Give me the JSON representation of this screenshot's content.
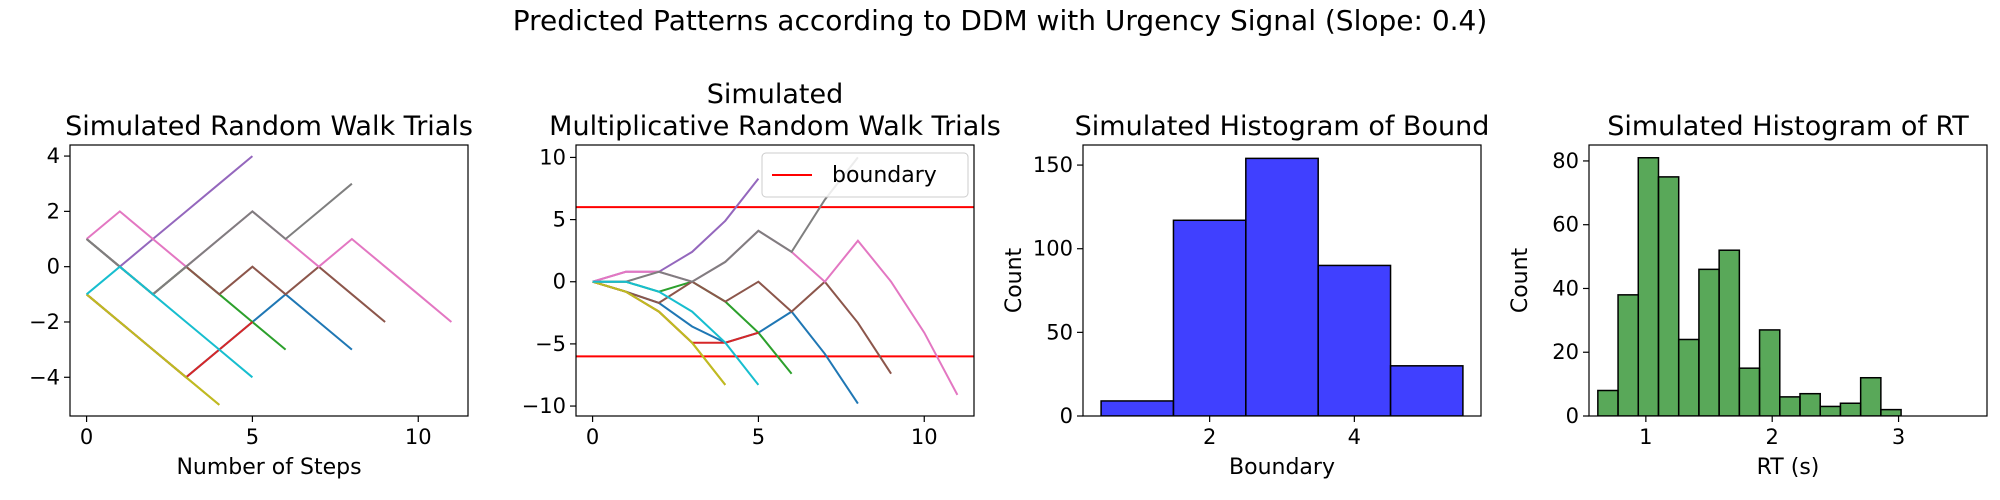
{
  "figure_title": "Predicted Patterns according to DDM with Urgency Signal (Slope: 0.4)",
  "chart_data": [
    {
      "type": "line",
      "title": "Simulated Random Walk Trials",
      "xlabel": "Number of Steps",
      "ylabel": "",
      "xlim": [
        -0.5,
        11.5
      ],
      "ylim": [
        -5.4,
        4.4
      ],
      "xticks": [
        0,
        5,
        10
      ],
      "yticks": [
        -4,
        -2,
        0,
        2,
        4
      ],
      "grid": false,
      "series": [
        {
          "color": "#1f77b4",
          "x": [
            0,
            1,
            2,
            3,
            4,
            5,
            6,
            7,
            8
          ],
          "y": [
            -1,
            -2,
            -3,
            -4,
            -3,
            -2,
            -1,
            -2,
            -3
          ]
        },
        {
          "color": "#ff7f0e",
          "x": [
            0,
            1,
            2,
            3,
            4
          ],
          "y": [
            -1,
            -2,
            -3,
            -4,
            -5
          ]
        },
        {
          "color": "#2ca02c",
          "x": [
            0,
            1,
            2,
            3,
            4,
            5,
            6
          ],
          "y": [
            1,
            0,
            -1,
            0,
            -1,
            -2,
            -3
          ]
        },
        {
          "color": "#d62728",
          "x": [
            0,
            1,
            2,
            3,
            4,
            5
          ],
          "y": [
            -1,
            -2,
            -3,
            -4,
            -3,
            -2
          ]
        },
        {
          "color": "#9467bd",
          "x": [
            0,
            1,
            2,
            3,
            4,
            5
          ],
          "y": [
            1,
            0,
            1,
            2,
            3,
            4
          ]
        },
        {
          "color": "#8c564b",
          "x": [
            0,
            1,
            2,
            3,
            4,
            5,
            6,
            7,
            8,
            9
          ],
          "y": [
            1,
            0,
            -1,
            0,
            -1,
            0,
            -1,
            0,
            -1,
            -2
          ]
        },
        {
          "color": "#e377c2",
          "x": [
            0,
            1,
            2,
            3,
            4,
            5,
            6,
            7,
            8,
            9,
            10,
            11
          ],
          "y": [
            1,
            2,
            1,
            0,
            1,
            2,
            1,
            0,
            1,
            0,
            -1,
            -2
          ]
        },
        {
          "color": "#7f7f7f",
          "x": [
            0,
            1,
            2,
            3,
            4,
            5,
            6,
            7,
            8
          ],
          "y": [
            1,
            0,
            -1,
            0,
            1,
            2,
            1,
            2,
            3
          ]
        },
        {
          "color": "#bcbd22",
          "x": [
            0,
            1,
            2,
            3,
            4
          ],
          "y": [
            -1,
            -2,
            -3,
            -4,
            -5
          ]
        },
        {
          "color": "#17becf",
          "x": [
            0,
            1,
            2,
            3,
            4,
            5
          ],
          "y": [
            -1,
            0,
            -1,
            -2,
            -3,
            -4
          ]
        }
      ]
    },
    {
      "type": "line",
      "title": "Simulated\nMultiplicative Random Walk Trials",
      "xlabel": "",
      "ylabel": "",
      "xlim": [
        -0.5,
        11.5
      ],
      "ylim": [
        -10.8,
        11.0
      ],
      "xticks": [
        0,
        5,
        10
      ],
      "yticks": [
        -10,
        -5,
        0,
        5,
        10
      ],
      "grid": false,
      "legend": {
        "position": "top-right",
        "entries": [
          {
            "label": "boundary",
            "color": "#ff0000"
          }
        ]
      },
      "boundaries": [
        6,
        -6
      ],
      "series": [
        {
          "color": "#1f77b4",
          "x": [
            0,
            1,
            2,
            3,
            4,
            5,
            6,
            7,
            8
          ],
          "y": [
            0,
            -0.8,
            -1.7,
            -3.6,
            -4.9,
            -4.1,
            -2.4,
            -5.8,
            -9.8
          ]
        },
        {
          "color": "#ff7f0e",
          "x": [
            0,
            1,
            2,
            3,
            4
          ],
          "y": [
            0,
            -0.8,
            -2.4,
            -4.9,
            -8.3
          ]
        },
        {
          "color": "#2ca02c",
          "x": [
            0,
            1,
            2,
            3,
            4,
            5,
            6
          ],
          "y": [
            0,
            0,
            -0.8,
            0,
            -1.6,
            -4.1,
            -7.4
          ]
        },
        {
          "color": "#d62728",
          "x": [
            0,
            1,
            2,
            3,
            4,
            5
          ],
          "y": [
            0,
            -0.8,
            -2.4,
            -4.9,
            -4.9,
            -4.1
          ]
        },
        {
          "color": "#9467bd",
          "x": [
            0,
            1,
            2,
            3,
            4,
            5
          ],
          "y": [
            0,
            0.8,
            0.8,
            2.4,
            4.9,
            8.3
          ]
        },
        {
          "color": "#8c564b",
          "x": [
            0,
            1,
            2,
            3,
            4,
            5,
            6,
            7,
            8,
            9
          ],
          "y": [
            0,
            -0.8,
            -1.7,
            0,
            -1.6,
            0,
            -2.4,
            0,
            -3.3,
            -7.4
          ]
        },
        {
          "color": "#e377c2",
          "x": [
            0,
            1,
            2,
            3,
            4,
            5,
            6,
            7,
            8,
            9,
            10,
            11
          ],
          "y": [
            0,
            0.8,
            0.8,
            0,
            1.6,
            4.1,
            2.4,
            0,
            3.3,
            0,
            -4.1,
            -9.1
          ]
        },
        {
          "color": "#7f7f7f",
          "x": [
            0,
            1,
            2,
            3,
            4,
            5,
            6,
            7,
            8
          ],
          "y": [
            0,
            0,
            0.8,
            0,
            1.6,
            4.1,
            2.4,
            6.6,
            10
          ]
        },
        {
          "color": "#bcbd22",
          "x": [
            0,
            1,
            2,
            3,
            4
          ],
          "y": [
            0,
            -0.8,
            -2.4,
            -4.9,
            -8.3
          ]
        },
        {
          "color": "#17becf",
          "x": [
            0,
            1,
            2,
            3,
            4,
            5
          ],
          "y": [
            0,
            0,
            -0.8,
            -2.4,
            -4.9,
            -8.3
          ]
        }
      ]
    },
    {
      "type": "bar",
      "title": "Simulated Histogram of Bound",
      "xlabel": "Boundary",
      "ylabel": "Count",
      "xlim": [
        0.25,
        5.75
      ],
      "ylim": [
        0,
        162
      ],
      "xticks": [
        2,
        4
      ],
      "yticks": [
        0,
        50,
        100,
        150
      ],
      "grid": false,
      "color": "#0000ff",
      "bins": [
        {
          "x0": 0.5,
          "x1": 1.5,
          "value": 9
        },
        {
          "x0": 1.5,
          "x1": 2.5,
          "value": 117
        },
        {
          "x0": 2.5,
          "x1": 3.5,
          "value": 154
        },
        {
          "x0": 3.5,
          "x1": 4.5,
          "value": 90
        },
        {
          "x0": 4.5,
          "x1": 5.5,
          "value": 30
        }
      ]
    },
    {
      "type": "bar",
      "title": "Simulated Histogram of RT",
      "xlabel": "RT (s)",
      "ylabel": "Count",
      "xlim": [
        0.55,
        3.7
      ],
      "ylim": [
        0,
        85
      ],
      "xticks": [
        1,
        2,
        3
      ],
      "yticks": [
        0,
        20,
        40,
        60,
        80
      ],
      "grid": false,
      "color": "#228b22",
      "bins": [
        {
          "x0": 0.62,
          "x1": 0.78,
          "value": 8
        },
        {
          "x0": 0.78,
          "x1": 0.94,
          "value": 38
        },
        {
          "x0": 0.94,
          "x1": 1.1,
          "value": 81
        },
        {
          "x0": 1.1,
          "x1": 1.26,
          "value": 75
        },
        {
          "x0": 1.26,
          "x1": 1.42,
          "value": 24
        },
        {
          "x0": 1.42,
          "x1": 1.58,
          "value": 46
        },
        {
          "x0": 1.58,
          "x1": 1.74,
          "value": 52
        },
        {
          "x0": 1.74,
          "x1": 1.9,
          "value": 15
        },
        {
          "x0": 1.9,
          "x1": 2.06,
          "value": 27
        },
        {
          "x0": 2.06,
          "x1": 2.22,
          "value": 6
        },
        {
          "x0": 2.22,
          "x1": 2.38,
          "value": 7
        },
        {
          "x0": 2.38,
          "x1": 2.54,
          "value": 3
        },
        {
          "x0": 2.54,
          "x1": 2.7,
          "value": 4
        },
        {
          "x0": 2.7,
          "x1": 2.86,
          "value": 12
        },
        {
          "x0": 2.86,
          "x1": 3.02,
          "value": 2
        }
      ]
    }
  ]
}
